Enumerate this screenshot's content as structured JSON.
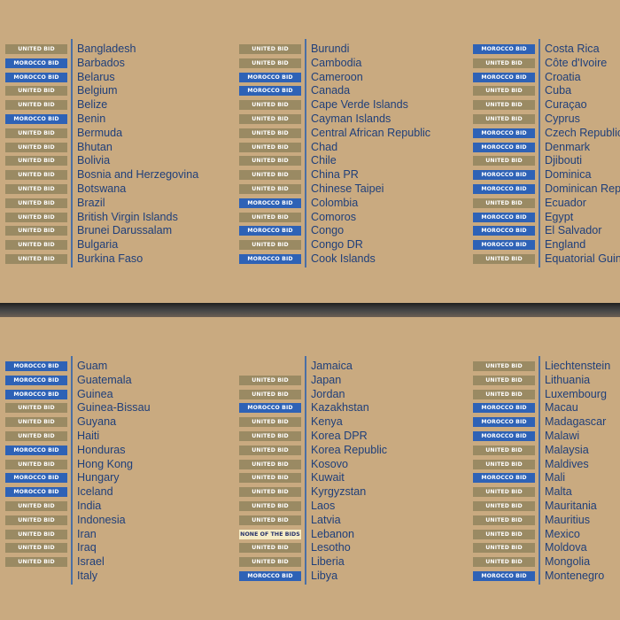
{
  "labels": {
    "united": "UNITED BID",
    "morocco": "MOROCCO BID",
    "none": "NONE OF THE BIDS"
  },
  "colors": {
    "background": "#c9aa80",
    "united_badge": "#9a8a63",
    "morocco_badge": "#2e62b6",
    "none_badge": "#f5ecc5",
    "country_text": "#1f3f7a",
    "divider_line": "#4a6fa5"
  },
  "panels": [
    {
      "columns": [
        {
          "rows": [
            {
              "vote": "united",
              "country": "Bangladesh"
            },
            {
              "vote": "morocco",
              "country": "Barbados"
            },
            {
              "vote": "morocco",
              "country": "Belarus"
            },
            {
              "vote": "united",
              "country": "Belgium"
            },
            {
              "vote": "united",
              "country": "Belize"
            },
            {
              "vote": "morocco",
              "country": "Benin"
            },
            {
              "vote": "united",
              "country": "Bermuda"
            },
            {
              "vote": "united",
              "country": "Bhutan"
            },
            {
              "vote": "united",
              "country": "Bolivia"
            },
            {
              "vote": "united",
              "country": "Bosnia and Herzegovina"
            },
            {
              "vote": "united",
              "country": "Botswana"
            },
            {
              "vote": "united",
              "country": "Brazil"
            },
            {
              "vote": "united",
              "country": "British Virgin Islands"
            },
            {
              "vote": "united",
              "country": "Brunei Darussalam"
            },
            {
              "vote": "united",
              "country": "Bulgaria"
            },
            {
              "vote": "united",
              "country": "Burkina Faso"
            }
          ]
        },
        {
          "rows": [
            {
              "vote": "united",
              "country": "Burundi"
            },
            {
              "vote": "united",
              "country": "Cambodia"
            },
            {
              "vote": "morocco",
              "country": "Cameroon"
            },
            {
              "vote": "morocco",
              "country": "Canada"
            },
            {
              "vote": "united",
              "country": "Cape Verde Islands"
            },
            {
              "vote": "united",
              "country": "Cayman Islands"
            },
            {
              "vote": "united",
              "country": "Central African Republic"
            },
            {
              "vote": "united",
              "country": "Chad"
            },
            {
              "vote": "united",
              "country": "Chile"
            },
            {
              "vote": "united",
              "country": "China PR"
            },
            {
              "vote": "united",
              "country": "Chinese Taipei"
            },
            {
              "vote": "morocco",
              "country": "Colombia"
            },
            {
              "vote": "united",
              "country": "Comoros"
            },
            {
              "vote": "morocco",
              "country": "Congo"
            },
            {
              "vote": "united",
              "country": "Congo DR"
            },
            {
              "vote": "morocco",
              "country": "Cook Islands"
            }
          ]
        },
        {
          "rows": [
            {
              "vote": "morocco",
              "country": "Costa Rica"
            },
            {
              "vote": "united",
              "country": "Côte d'Ivoire"
            },
            {
              "vote": "morocco",
              "country": "Croatia"
            },
            {
              "vote": "united",
              "country": "Cuba"
            },
            {
              "vote": "united",
              "country": "Curaçao"
            },
            {
              "vote": "united",
              "country": "Cyprus"
            },
            {
              "vote": "morocco",
              "country": "Czech Republic"
            },
            {
              "vote": "morocco",
              "country": "Denmark"
            },
            {
              "vote": "united",
              "country": "Djibouti"
            },
            {
              "vote": "morocco",
              "country": "Dominica"
            },
            {
              "vote": "morocco",
              "country": "Dominican Repu"
            },
            {
              "vote": "united",
              "country": "Ecuador"
            },
            {
              "vote": "morocco",
              "country": "Egypt"
            },
            {
              "vote": "morocco",
              "country": "El Salvador"
            },
            {
              "vote": "morocco",
              "country": "England"
            },
            {
              "vote": "united",
              "country": "Equatorial Guine"
            }
          ]
        }
      ]
    },
    {
      "columns": [
        {
          "rows": [
            {
              "vote": "morocco",
              "country": "Guam"
            },
            {
              "vote": "morocco",
              "country": "Guatemala"
            },
            {
              "vote": "morocco",
              "country": "Guinea"
            },
            {
              "vote": "united",
              "country": "Guinea-Bissau"
            },
            {
              "vote": "united",
              "country": "Guyana"
            },
            {
              "vote": "united",
              "country": "Haiti"
            },
            {
              "vote": "morocco",
              "country": "Honduras"
            },
            {
              "vote": "united",
              "country": "Hong Kong"
            },
            {
              "vote": "morocco",
              "country": "Hungary"
            },
            {
              "vote": "morocco",
              "country": "Iceland"
            },
            {
              "vote": "united",
              "country": "India"
            },
            {
              "vote": "united",
              "country": "Indonesia"
            },
            {
              "vote": "united",
              "country": "Iran"
            },
            {
              "vote": "united",
              "country": "Iraq"
            },
            {
              "vote": "united",
              "country": "Israel"
            },
            {
              "vote": "",
              "country": "Italy"
            }
          ]
        },
        {
          "rows": [
            {
              "vote": "",
              "country": "Jamaica"
            },
            {
              "vote": "united",
              "country": "Japan"
            },
            {
              "vote": "united",
              "country": "Jordan"
            },
            {
              "vote": "morocco",
              "country": "Kazakhstan"
            },
            {
              "vote": "united",
              "country": "Kenya"
            },
            {
              "vote": "united",
              "country": "Korea DPR"
            },
            {
              "vote": "united",
              "country": "Korea Republic"
            },
            {
              "vote": "united",
              "country": "Kosovo"
            },
            {
              "vote": "united",
              "country": "Kuwait"
            },
            {
              "vote": "united",
              "country": "Kyrgyzstan"
            },
            {
              "vote": "united",
              "country": "Laos"
            },
            {
              "vote": "united",
              "country": "Latvia"
            },
            {
              "vote": "none",
              "country": "Lebanon"
            },
            {
              "vote": "united",
              "country": "Lesotho"
            },
            {
              "vote": "united",
              "country": "Liberia"
            },
            {
              "vote": "morocco",
              "country": "Libya"
            }
          ]
        },
        {
          "rows": [
            {
              "vote": "united",
              "country": "Liechtenstein"
            },
            {
              "vote": "united",
              "country": "Lithuania"
            },
            {
              "vote": "united",
              "country": "Luxembourg"
            },
            {
              "vote": "morocco",
              "country": "Macau"
            },
            {
              "vote": "morocco",
              "country": "Madagascar"
            },
            {
              "vote": "morocco",
              "country": "Malawi"
            },
            {
              "vote": "united",
              "country": "Malaysia"
            },
            {
              "vote": "united",
              "country": "Maldives"
            },
            {
              "vote": "morocco",
              "country": "Mali"
            },
            {
              "vote": "united",
              "country": "Malta"
            },
            {
              "vote": "united",
              "country": "Mauritania"
            },
            {
              "vote": "united",
              "country": "Mauritius"
            },
            {
              "vote": "united",
              "country": "Mexico"
            },
            {
              "vote": "united",
              "country": "Moldova"
            },
            {
              "vote": "united",
              "country": "Mongolia"
            },
            {
              "vote": "morocco",
              "country": "Montenegro"
            }
          ]
        }
      ]
    }
  ]
}
